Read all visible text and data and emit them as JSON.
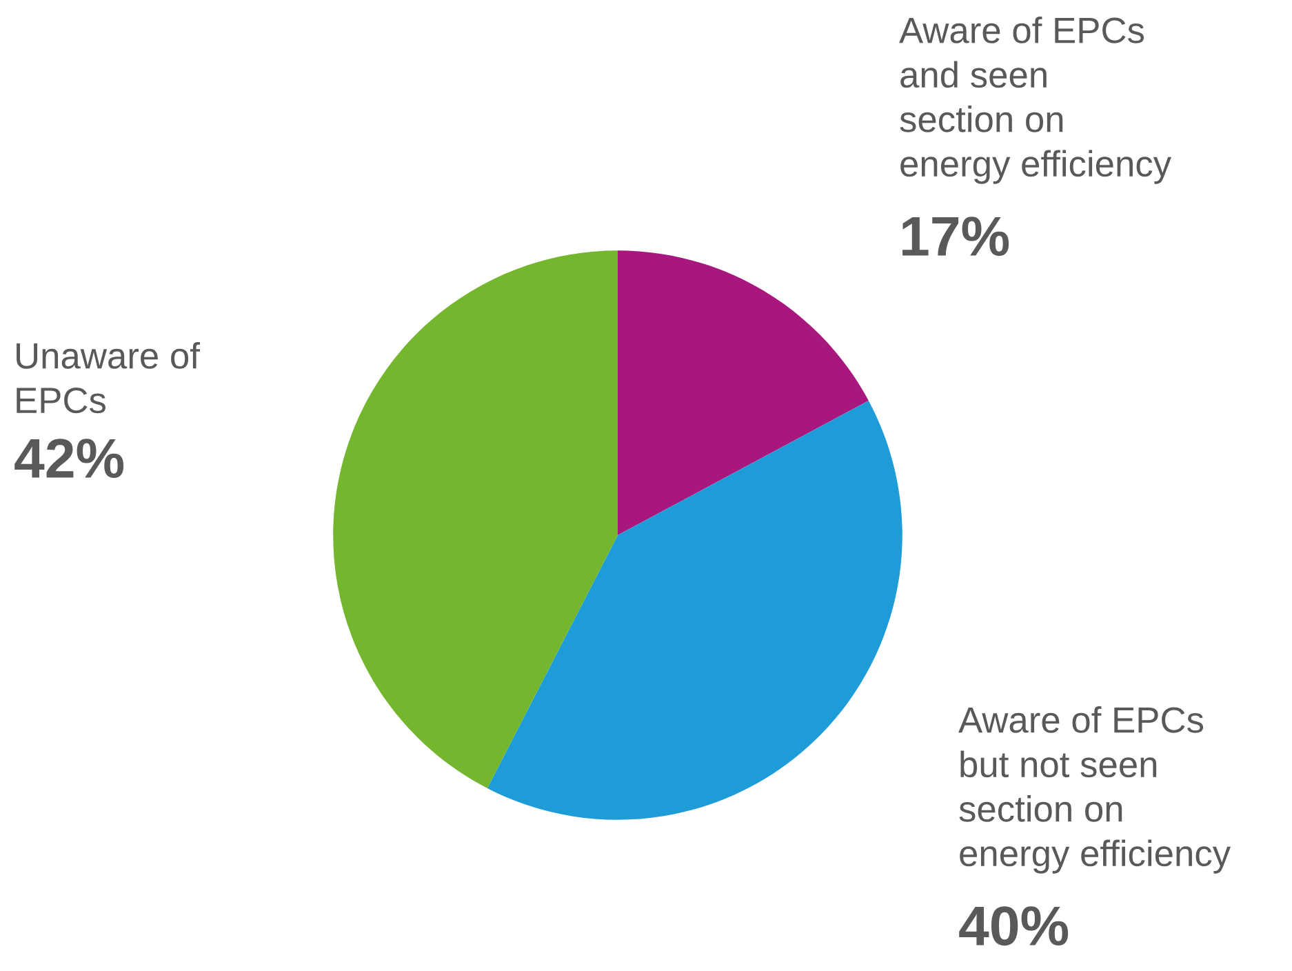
{
  "chart_data": {
    "type": "pie",
    "categories": [
      "Aware of EPCs\nand seen\nsection on\nenergy efficiency",
      "Aware of EPCs\nbut not seen\nsection on\nenergy efficiency",
      "Unaware of\nEPCs"
    ],
    "values": [
      17,
      40,
      42
    ],
    "colors": [
      "#a8177e",
      "#1e9cd7",
      "#74b62e"
    ],
    "value_labels": [
      "17%",
      "40%",
      "42%"
    ]
  }
}
